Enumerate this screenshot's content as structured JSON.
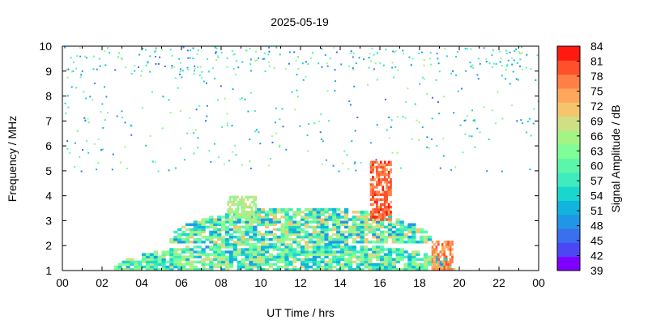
{
  "chart_data": {
    "type": "heatmap",
    "title": "2025-05-19",
    "xlabel": "UT Time / hrs",
    "ylabel": "Frequency / MHz",
    "colorbar_label": "Signal Amplitude / dB",
    "xlim": [
      0,
      24
    ],
    "ylim": [
      1,
      10
    ],
    "x_ticks": [
      "00",
      "02",
      "04",
      "06",
      "08",
      "10",
      "12",
      "14",
      "16",
      "18",
      "20",
      "22",
      "00"
    ],
    "y_ticks": [
      "1",
      "2",
      "3",
      "4",
      "5",
      "6",
      "7",
      "8",
      "9",
      "10"
    ],
    "colorbar_ticks": [
      "39",
      "42",
      "45",
      "48",
      "51",
      "54",
      "57",
      "60",
      "63",
      "66",
      "69",
      "72",
      "75",
      "78",
      "81",
      "84"
    ],
    "colorbar_range": [
      39,
      84
    ],
    "colorbar_colors": [
      "#8000ff",
      "#4c46f5",
      "#3a6fee",
      "#2296e6",
      "#12b4dd",
      "#1ad6cc",
      "#40ecbd",
      "#5cf6ab",
      "#7efd98",
      "#a3f385",
      "#cfe084",
      "#f5c56e",
      "#ffa75a",
      "#ff7f46",
      "#ff4f2b",
      "#ff1a10"
    ],
    "grid": false,
    "features": [
      {
        "x_range": [
          2.5,
          19.8
        ],
        "y_range": [
          1,
          2.1
        ],
        "level_db": [
          50,
          70
        ]
      },
      {
        "x_range": [
          5.3,
          18.5
        ],
        "y_range": [
          2.1,
          3.5
        ],
        "level_db": [
          48,
          72
        ]
      },
      {
        "x_range": [
          8.3,
          9.7
        ],
        "y_range": [
          3.0,
          4.0
        ],
        "level_db": [
          63,
          70
        ]
      },
      {
        "x_range": [
          15.5,
          16.6
        ],
        "y_range": [
          3.0,
          5.3
        ],
        "level_db": [
          75,
          82
        ]
      },
      {
        "x_range": [
          18.6,
          19.7
        ],
        "y_range": [
          1.0,
          2.2
        ],
        "level_db": [
          72,
          80
        ]
      }
    ]
  }
}
